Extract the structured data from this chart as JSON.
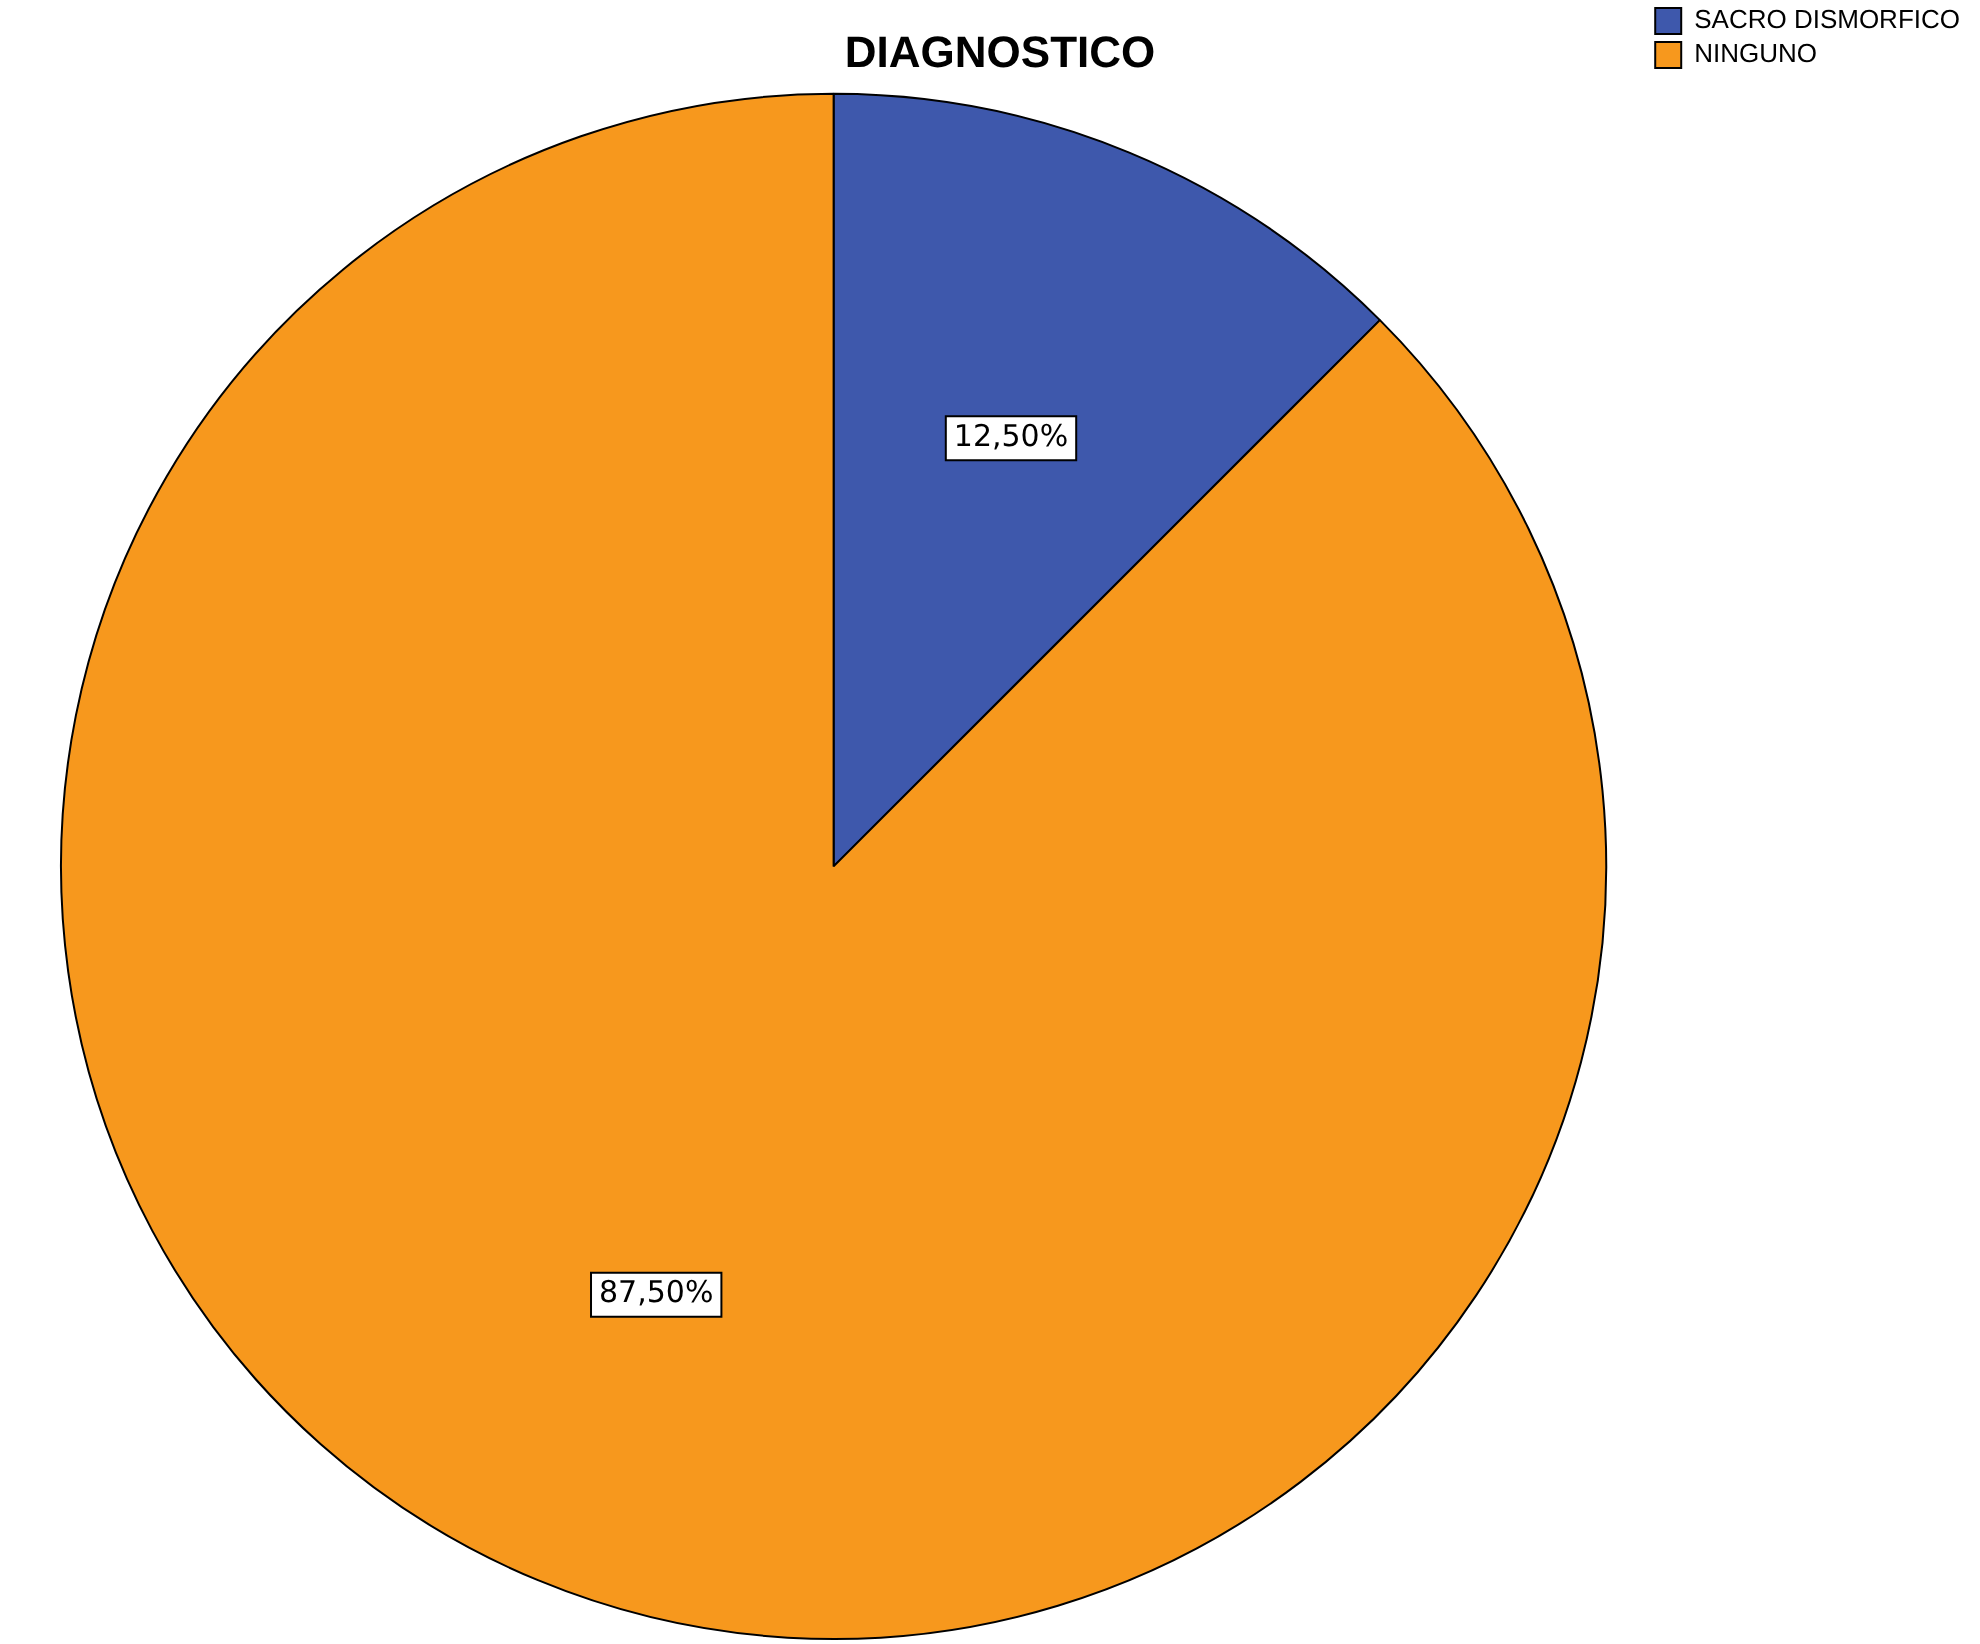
{
  "chart_data": {
    "type": "pie",
    "title": "DIAGNOSTICO",
    "categories": [
      "SACRO DISMORFICO",
      "NINGUNO"
    ],
    "values": [
      12.5,
      87.5
    ],
    "colors": [
      "#3e58ac",
      "#f7981d"
    ],
    "value_labels": [
      "12,50%",
      "87,50%"
    ],
    "legend": "top right"
  }
}
